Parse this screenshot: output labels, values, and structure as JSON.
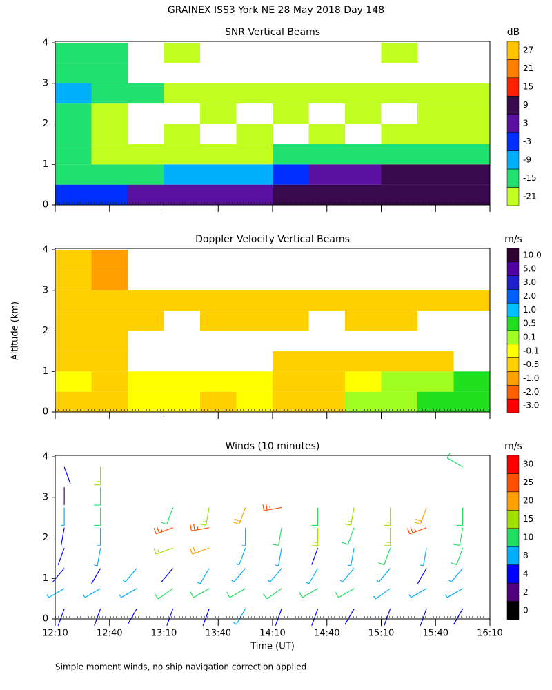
{
  "title": "GRAINEX ISS3 York NE  28 May 2018 Day 148",
  "footnote": "Simple moment winds, no ship navigation correction applied",
  "chart_data": [
    {
      "type": "heatmap",
      "title": "SNR Vertical Beams",
      "colorbar_label": "dB",
      "levels": [
        27,
        21,
        15,
        9,
        3,
        -3,
        -9,
        -15,
        -21
      ],
      "colors": [
        "#ffc400",
        "#ff8000",
        "#ff2000",
        "#3a0a50",
        "#5a10a0",
        "#0030ff",
        "#00b0ff",
        "#20e070",
        "#c0ff20"
      ],
      "ylim": [
        0,
        4
      ],
      "yticks": [
        0,
        1,
        2,
        3,
        4
      ],
      "time_bins": [
        "12:10",
        "12:30",
        "12:50",
        "13:10",
        "13:30",
        "13:50",
        "14:10",
        "14:30",
        "14:50",
        "15:10",
        "15:30",
        "15:50",
        "16:10"
      ],
      "altitude_bins": [
        0,
        0.5,
        1,
        1.5,
        2,
        2.5,
        3,
        3.5,
        4
      ],
      "values": [
        [
          -3,
          -3,
          3,
          3,
          3,
          3,
          9,
          9,
          9,
          9,
          9,
          9
        ],
        [
          -15,
          -15,
          -15,
          -9,
          -9,
          -9,
          -3,
          3,
          3,
          9,
          9,
          9
        ],
        [
          -15,
          -21,
          -21,
          -21,
          -21,
          -21,
          -15,
          -15,
          -15,
          -15,
          -15,
          -15
        ],
        [
          -15,
          -21,
          null,
          -21,
          null,
          -21,
          null,
          -21,
          null,
          -21,
          -21,
          -21
        ],
        [
          -15,
          -21,
          null,
          null,
          -21,
          null,
          -21,
          null,
          -21,
          null,
          -21,
          -21
        ],
        [
          -9,
          -15,
          -15,
          -21,
          -21,
          -21,
          -21,
          -21,
          -21,
          -21,
          -21,
          -21
        ],
        [
          -15,
          -15,
          null,
          null,
          null,
          null,
          null,
          null,
          null,
          null,
          null,
          null
        ],
        [
          -15,
          -15,
          null,
          -21,
          null,
          null,
          null,
          null,
          null,
          -21,
          null,
          null
        ]
      ]
    },
    {
      "type": "heatmap",
      "title": "Doppler Velocity Vertical Beams",
      "colorbar_label": "m/s",
      "ylabel": "Altitude (km)",
      "levels": [
        {
          "value": 10,
          "label": "10.0"
        },
        {
          "value": 5,
          "label": "5.0"
        },
        {
          "value": 3,
          "label": "3.0"
        },
        {
          "value": 2,
          "label": "2.0"
        },
        {
          "value": 1,
          "label": "1.0"
        },
        0.5,
        0.1,
        -0.1,
        -0.5,
        {
          "value": -1,
          "label": "-1.0"
        },
        {
          "value": -2,
          "label": "-2.0"
        },
        {
          "value": -3,
          "label": "-3.0"
        }
      ],
      "colors": [
        "#300030",
        "#5000a0",
        "#2020d0",
        "#0060ff",
        "#00c0ff",
        "#20e020",
        "#a0ff20",
        "#ffff00",
        "#ffd000",
        "#ffa000",
        "#ff6000",
        "#ff0000"
      ],
      "ylim": [
        0,
        4
      ],
      "yticks": [
        0,
        1,
        2,
        3,
        4
      ],
      "time_bins": [
        "12:10",
        "12:30",
        "12:50",
        "13:10",
        "13:30",
        "13:50",
        "14:10",
        "14:30",
        "14:50",
        "15:10",
        "15:30",
        "15:50",
        "16:10"
      ],
      "altitude_bins": [
        0,
        0.5,
        1,
        1.5,
        2,
        2.5,
        3,
        3.5,
        4
      ],
      "values": [
        [
          -0.5,
          -0.5,
          -0.1,
          -0.1,
          -0.5,
          -0.1,
          -0.5,
          -0.5,
          0.1,
          0.1,
          0.5,
          0.5
        ],
        [
          -0.1,
          -0.5,
          -0.1,
          -0.1,
          -0.1,
          -0.1,
          -0.5,
          -0.5,
          -0.1,
          0.1,
          0.1,
          0.5
        ],
        [
          -0.5,
          -0.5,
          null,
          null,
          null,
          null,
          -0.5,
          -0.5,
          -0.5,
          -0.5,
          -0.5,
          null
        ],
        [
          -0.5,
          -0.5,
          null,
          null,
          null,
          null,
          null,
          null,
          null,
          null,
          null,
          null
        ],
        [
          -0.5,
          -0.5,
          -0.5,
          null,
          -0.5,
          -0.5,
          -0.5,
          null,
          -0.5,
          -0.5,
          null,
          null
        ],
        [
          -0.5,
          -0.5,
          -0.5,
          -0.5,
          -0.5,
          -0.5,
          -0.5,
          -0.5,
          -0.5,
          -0.5,
          -0.5,
          -0.5
        ],
        [
          -0.5,
          -1,
          null,
          null,
          null,
          null,
          null,
          null,
          null,
          null,
          null,
          null
        ],
        [
          -0.5,
          -1,
          null,
          null,
          null,
          null,
          null,
          null,
          null,
          null,
          null,
          null
        ]
      ]
    },
    {
      "type": "barbs",
      "title": "Winds (10 minutes)",
      "colorbar_label": "m/s",
      "xlabel": "Time (UT)",
      "levels": [
        30,
        25,
        20,
        15,
        10,
        8,
        4,
        2,
        0
      ],
      "colors": [
        "#ff0000",
        "#ff5000",
        "#ffa000",
        "#a0e000",
        "#20e060",
        "#00b0ff",
        "#0000ff",
        "#500080",
        "#000000"
      ],
      "ylim": [
        0,
        4
      ],
      "yticks": [
        0,
        1,
        2,
        3,
        4
      ],
      "xlim": [
        "12:10",
        "16:10"
      ],
      "xticks": [
        "12:10",
        "12:40",
        "13:10",
        "13:40",
        "14:10",
        "14:40",
        "15:10",
        "15:40",
        "16:10"
      ],
      "x": [
        "12:15",
        "12:35",
        "12:55",
        "13:15",
        "13:35",
        "13:55",
        "14:15",
        "14:35",
        "14:55",
        "15:15",
        "15:35",
        "15:55"
      ],
      "altitudes": [
        0.25,
        0.75,
        1.25,
        1.75,
        2.25,
        2.75,
        3.25,
        3.75
      ],
      "speed": [
        [
          4,
          4,
          4,
          4,
          4,
          8,
          4,
          4,
          4,
          4,
          4,
          4
        ],
        [
          8,
          8,
          8,
          10,
          10,
          10,
          10,
          10,
          10,
          8,
          8,
          8
        ],
        [
          4,
          4,
          8,
          4,
          8,
          8,
          8,
          8,
          8,
          8,
          4,
          8
        ],
        [
          4,
          8,
          null,
          15,
          20,
          8,
          8,
          4,
          8,
          10,
          8,
          10
        ],
        [
          4,
          8,
          null,
          25,
          25,
          8,
          10,
          15,
          10,
          15,
          25,
          10
        ],
        [
          8,
          10,
          null,
          10,
          15,
          20,
          25,
          10,
          15,
          15,
          20,
          10
        ],
        [
          2,
          10,
          null,
          null,
          null,
          null,
          null,
          null,
          null,
          null,
          null,
          null
        ],
        [
          4,
          15,
          null,
          null,
          null,
          null,
          null,
          null,
          null,
          null,
          null,
          10
        ]
      ],
      "direction": [
        [
          200,
          200,
          210,
          200,
          200,
          210,
          200,
          200,
          210,
          200,
          200,
          210
        ],
        [
          240,
          240,
          240,
          235,
          240,
          240,
          235,
          240,
          240,
          235,
          240,
          240
        ],
        [
          220,
          210,
          220,
          220,
          210,
          220,
          220,
          210,
          220,
          220,
          210,
          220
        ],
        [
          200,
          190,
          null,
          250,
          250,
          200,
          190,
          200,
          190,
          200,
          190,
          200
        ],
        [
          190,
          180,
          null,
          250,
          260,
          180,
          190,
          180,
          200,
          180,
          250,
          190
        ],
        [
          180,
          180,
          null,
          200,
          190,
          200,
          260,
          180,
          190,
          180,
          200,
          180
        ],
        [
          180,
          180,
          null,
          null,
          null,
          null,
          null,
          null,
          null,
          null,
          null,
          null
        ],
        [
          160,
          180,
          null,
          null,
          null,
          null,
          null,
          null,
          null,
          null,
          null,
          300
        ]
      ]
    }
  ]
}
